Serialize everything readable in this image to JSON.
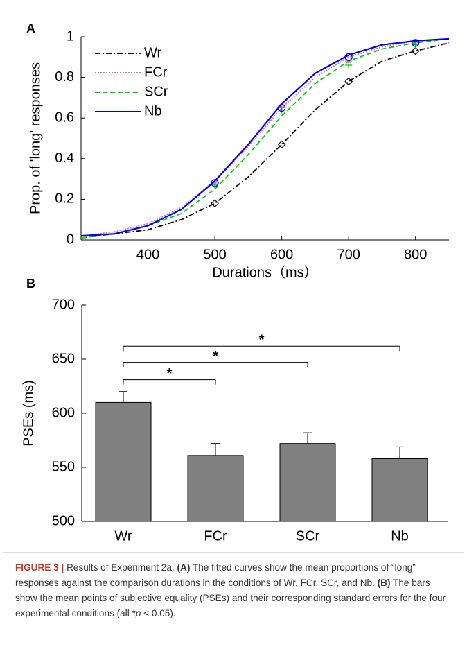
{
  "chart_data": [
    {
      "type": "line",
      "panel": "A",
      "xlabel": "Durations（ms）",
      "ylabel": "Prop. of 'long' responses",
      "xlim": [
        300,
        850
      ],
      "ylim": [
        0,
        1
      ],
      "xticks": [
        400,
        500,
        600,
        700,
        800
      ],
      "yticks": [
        0,
        0.2,
        0.4,
        0.6,
        0.8,
        1
      ],
      "legend": "upper-left",
      "x": [
        300,
        350,
        400,
        450,
        500,
        550,
        600,
        650,
        700,
        750,
        800,
        850
      ],
      "marker_x": [
        500,
        600,
        700,
        800
      ],
      "series": [
        {
          "name": "Wr",
          "color": "#000000",
          "dash": "dashdot",
          "marker": "diamond",
          "values": [
            0.01,
            0.03,
            0.05,
            0.1,
            0.18,
            0.31,
            0.47,
            0.64,
            0.78,
            0.88,
            0.93,
            0.97
          ],
          "marker_values": [
            0.18,
            0.47,
            0.78,
            0.93
          ]
        },
        {
          "name": "FCr",
          "color": "#e060e0",
          "dash": "dotted",
          "marker": "star",
          "values": [
            0.02,
            0.04,
            0.08,
            0.16,
            0.29,
            0.46,
            0.65,
            0.8,
            0.9,
            0.95,
            0.98,
            0.99
          ],
          "marker_values": [
            0.28,
            0.65,
            0.88,
            0.97
          ]
        },
        {
          "name": "SCr",
          "color": "#00cc00",
          "dash": "dashed",
          "marker": "plus",
          "values": [
            0.01,
            0.03,
            0.07,
            0.13,
            0.25,
            0.42,
            0.61,
            0.77,
            0.88,
            0.94,
            0.97,
            0.99
          ],
          "marker_values": [
            0.27,
            0.64,
            0.86,
            0.96
          ]
        },
        {
          "name": "Nb",
          "color": "#0000dd",
          "dash": "solid",
          "marker": "circle",
          "values": [
            0.02,
            0.03,
            0.07,
            0.15,
            0.29,
            0.47,
            0.67,
            0.82,
            0.91,
            0.96,
            0.98,
            0.99
          ],
          "marker_values": [
            0.28,
            0.65,
            0.9,
            0.97
          ]
        }
      ]
    },
    {
      "type": "bar",
      "panel": "B",
      "ylabel": "PSEs (ms)",
      "color": "#808080",
      "ylim": [
        500,
        700
      ],
      "yticks": [
        500,
        550,
        600,
        650,
        700
      ],
      "categories": [
        "Wr",
        "FCr",
        "SCr",
        "Nb"
      ],
      "values": [
        610,
        561,
        572,
        558
      ],
      "errors": [
        10,
        11,
        10,
        11
      ],
      "significance": [
        {
          "between": [
            "Wr",
            "FCr"
          ],
          "y": 631,
          "label": "*"
        },
        {
          "between": [
            "Wr",
            "SCr"
          ],
          "y": 647,
          "label": "*"
        },
        {
          "between": [
            "Wr",
            "Nb"
          ],
          "y": 662,
          "label": "*"
        }
      ]
    }
  ],
  "caption": {
    "label": "FIGURE 3 |",
    "text1": "Results of Experiment 2a.",
    "a": "(A)",
    "text2": "The fitted curves show the mean proportions of “long” responses against the comparison durations in the conditions of Wr, FCr, SCr, and Nb.",
    "b": "(B)",
    "text3": "The bars show the mean points of subjective equality (PSEs) and their corresponding standard errors for the four experimental conditions (all *",
    "p": "p",
    "text4": "< 0.05)."
  }
}
